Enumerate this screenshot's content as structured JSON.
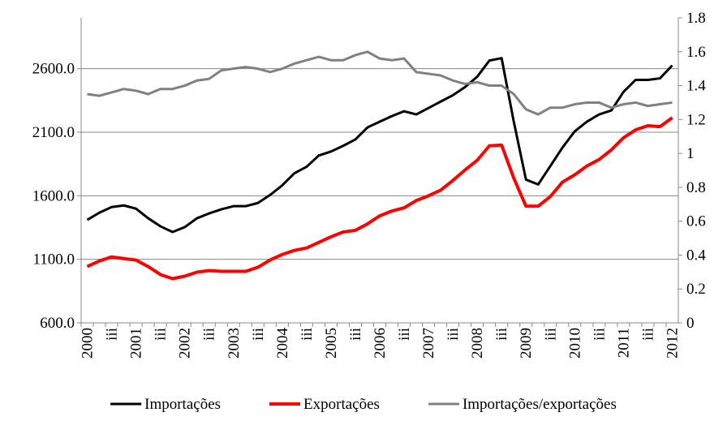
{
  "chart_data": {
    "type": "line",
    "categories": [
      "2000",
      null,
      "iii",
      null,
      "2001",
      null,
      "iii",
      null,
      "2002",
      null,
      "iii",
      null,
      "2003",
      null,
      "iii",
      null,
      "2004",
      null,
      "iii",
      null,
      "2005",
      null,
      "iii",
      null,
      "2006",
      null,
      "iii",
      null,
      "2007",
      null,
      "iii",
      null,
      "2008",
      null,
      "iii",
      null,
      "2009",
      null,
      "iii",
      null,
      "2010",
      null,
      "iii",
      null,
      "2011",
      null,
      "iii",
      null,
      "2012"
    ],
    "series": [
      {
        "name": "Importações",
        "color": "#000000",
        "values": [
          1410,
          1467,
          1511,
          1524,
          1499,
          1423,
          1360,
          1315,
          1353,
          1423,
          1461,
          1493,
          1518,
          1518,
          1543,
          1606,
          1682,
          1777,
          1828,
          1917,
          1948,
          1993,
          2043,
          2138,
          2183,
          2227,
          2265,
          2240,
          2290,
          2341,
          2391,
          2455,
          2537,
          2664,
          2683,
          2183,
          1727,
          1689,
          1834,
          1980,
          2107,
          2183,
          2240,
          2271,
          2417,
          2512,
          2512,
          2524,
          2626
        ]
      },
      {
        "name": "Exportações",
        "color": "#ff0000",
        "values": [
          1043,
          1087,
          1119,
          1106,
          1094,
          1043,
          980,
          948,
          967,
          999,
          1011,
          1005,
          1005,
          1005,
          1037,
          1094,
          1138,
          1170,
          1189,
          1233,
          1277,
          1315,
          1328,
          1379,
          1442,
          1480,
          1505,
          1562,
          1600,
          1644,
          1720,
          1803,
          1879,
          1993,
          1999,
          1739,
          1518,
          1518,
          1594,
          1708,
          1765,
          1834,
          1885,
          1961,
          2056,
          2119,
          2151,
          2144,
          2214
        ]
      },
      {
        "name": "Importações/exportações",
        "color": "#808080",
        "axis": "y2",
        "values": [
          1.35,
          1.34,
          1.36,
          1.38,
          1.37,
          1.35,
          1.38,
          1.38,
          1.4,
          1.43,
          1.44,
          1.49,
          1.5,
          1.51,
          1.5,
          1.48,
          1.5,
          1.53,
          1.55,
          1.57,
          1.55,
          1.55,
          1.58,
          1.6,
          1.56,
          1.55,
          1.56,
          1.48,
          1.47,
          1.46,
          1.43,
          1.41,
          1.42,
          1.4,
          1.4,
          1.35,
          1.26,
          1.23,
          1.27,
          1.27,
          1.29,
          1.3,
          1.3,
          1.27,
          1.29,
          1.3,
          1.28,
          1.29,
          1.3
        ]
      }
    ],
    "ylim": [
      600,
      3000
    ],
    "yticks": [
      {
        "value": 600,
        "label": "600.0"
      },
      {
        "value": 1100,
        "label": "1100.0"
      },
      {
        "value": 1600,
        "label": "1600.0"
      },
      {
        "value": 2100,
        "label": "2100.0"
      },
      {
        "value": 2600,
        "label": "2600.0"
      }
    ],
    "y2lim": [
      0,
      1.8
    ],
    "y2ticks": [
      0,
      0.2,
      0.4,
      0.6,
      0.8,
      1,
      1.2,
      1.4,
      1.6,
      1.8
    ],
    "grid": true,
    "legend": "bottom"
  }
}
